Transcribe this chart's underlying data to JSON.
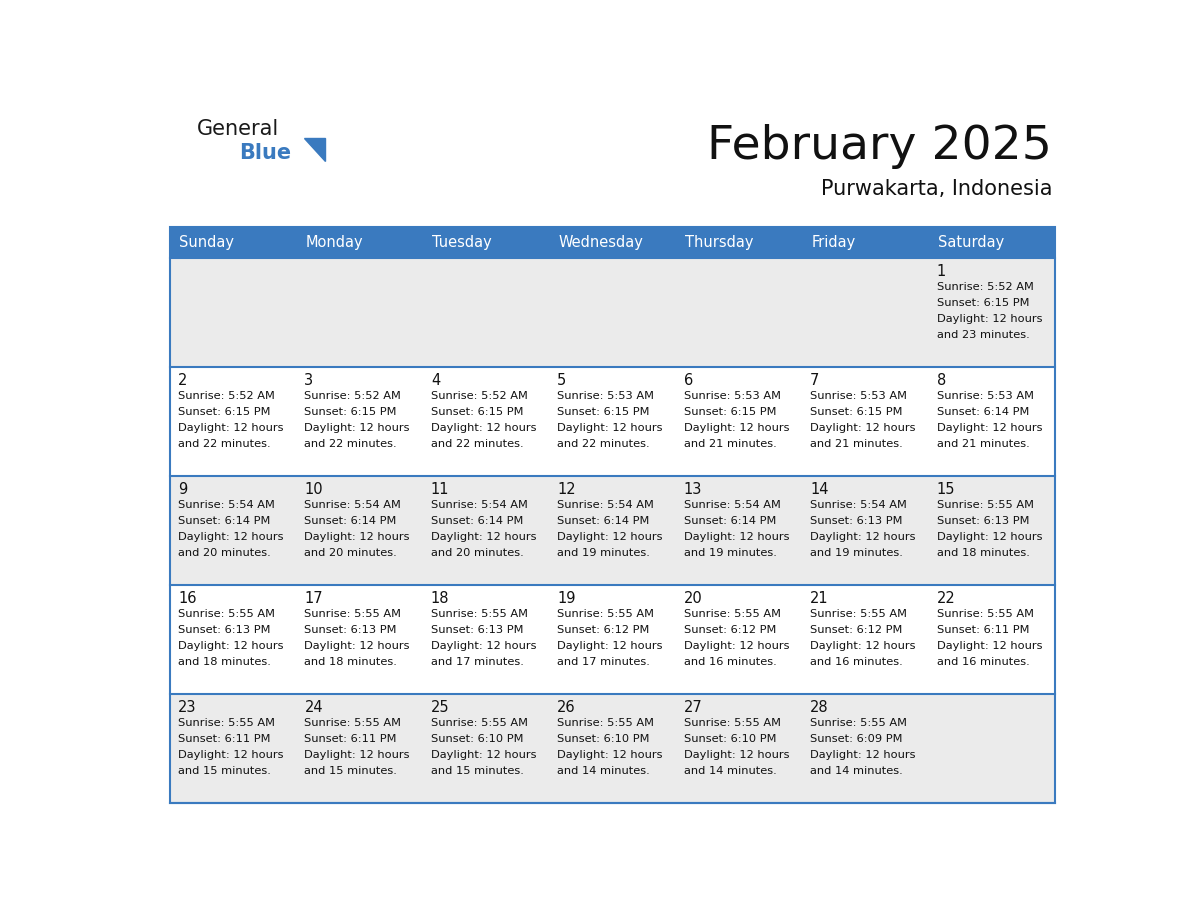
{
  "title": "February 2025",
  "subtitle": "Purwakarta, Indonesia",
  "header_color": "#3a7abf",
  "header_text_color": "#ffffff",
  "day_names": [
    "Sunday",
    "Monday",
    "Tuesday",
    "Wednesday",
    "Thursday",
    "Friday",
    "Saturday"
  ],
  "background_color": "#ffffff",
  "row_bg_colors": [
    "#ebebeb",
    "#ffffff",
    "#ebebeb",
    "#ffffff",
    "#ebebeb"
  ],
  "separator_color": "#3a7abf",
  "logo_text_color": "#1a1a1a",
  "logo_blue_color": "#3a7abf",
  "title_color": "#111111",
  "subtitle_color": "#111111",
  "text_color": "#111111",
  "days": [
    {
      "day": 1,
      "col": 6,
      "row": 0,
      "sunrise": "5:52 AM",
      "sunset": "6:15 PM",
      "daylight": "12 hours and 23 minutes."
    },
    {
      "day": 2,
      "col": 0,
      "row": 1,
      "sunrise": "5:52 AM",
      "sunset": "6:15 PM",
      "daylight": "12 hours and 22 minutes."
    },
    {
      "day": 3,
      "col": 1,
      "row": 1,
      "sunrise": "5:52 AM",
      "sunset": "6:15 PM",
      "daylight": "12 hours and 22 minutes."
    },
    {
      "day": 4,
      "col": 2,
      "row": 1,
      "sunrise": "5:52 AM",
      "sunset": "6:15 PM",
      "daylight": "12 hours and 22 minutes."
    },
    {
      "day": 5,
      "col": 3,
      "row": 1,
      "sunrise": "5:53 AM",
      "sunset": "6:15 PM",
      "daylight": "12 hours and 22 minutes."
    },
    {
      "day": 6,
      "col": 4,
      "row": 1,
      "sunrise": "5:53 AM",
      "sunset": "6:15 PM",
      "daylight": "12 hours and 21 minutes."
    },
    {
      "day": 7,
      "col": 5,
      "row": 1,
      "sunrise": "5:53 AM",
      "sunset": "6:15 PM",
      "daylight": "12 hours and 21 minutes."
    },
    {
      "day": 8,
      "col": 6,
      "row": 1,
      "sunrise": "5:53 AM",
      "sunset": "6:14 PM",
      "daylight": "12 hours and 21 minutes."
    },
    {
      "day": 9,
      "col": 0,
      "row": 2,
      "sunrise": "5:54 AM",
      "sunset": "6:14 PM",
      "daylight": "12 hours and 20 minutes."
    },
    {
      "day": 10,
      "col": 1,
      "row": 2,
      "sunrise": "5:54 AM",
      "sunset": "6:14 PM",
      "daylight": "12 hours and 20 minutes."
    },
    {
      "day": 11,
      "col": 2,
      "row": 2,
      "sunrise": "5:54 AM",
      "sunset": "6:14 PM",
      "daylight": "12 hours and 20 minutes."
    },
    {
      "day": 12,
      "col": 3,
      "row": 2,
      "sunrise": "5:54 AM",
      "sunset": "6:14 PM",
      "daylight": "12 hours and 19 minutes."
    },
    {
      "day": 13,
      "col": 4,
      "row": 2,
      "sunrise": "5:54 AM",
      "sunset": "6:14 PM",
      "daylight": "12 hours and 19 minutes."
    },
    {
      "day": 14,
      "col": 5,
      "row": 2,
      "sunrise": "5:54 AM",
      "sunset": "6:13 PM",
      "daylight": "12 hours and 19 minutes."
    },
    {
      "day": 15,
      "col": 6,
      "row": 2,
      "sunrise": "5:55 AM",
      "sunset": "6:13 PM",
      "daylight": "12 hours and 18 minutes."
    },
    {
      "day": 16,
      "col": 0,
      "row": 3,
      "sunrise": "5:55 AM",
      "sunset": "6:13 PM",
      "daylight": "12 hours and 18 minutes."
    },
    {
      "day": 17,
      "col": 1,
      "row": 3,
      "sunrise": "5:55 AM",
      "sunset": "6:13 PM",
      "daylight": "12 hours and 18 minutes."
    },
    {
      "day": 18,
      "col": 2,
      "row": 3,
      "sunrise": "5:55 AM",
      "sunset": "6:13 PM",
      "daylight": "12 hours and 17 minutes."
    },
    {
      "day": 19,
      "col": 3,
      "row": 3,
      "sunrise": "5:55 AM",
      "sunset": "6:12 PM",
      "daylight": "12 hours and 17 minutes."
    },
    {
      "day": 20,
      "col": 4,
      "row": 3,
      "sunrise": "5:55 AM",
      "sunset": "6:12 PM",
      "daylight": "12 hours and 16 minutes."
    },
    {
      "day": 21,
      "col": 5,
      "row": 3,
      "sunrise": "5:55 AM",
      "sunset": "6:12 PM",
      "daylight": "12 hours and 16 minutes."
    },
    {
      "day": 22,
      "col": 6,
      "row": 3,
      "sunrise": "5:55 AM",
      "sunset": "6:11 PM",
      "daylight": "12 hours and 16 minutes."
    },
    {
      "day": 23,
      "col": 0,
      "row": 4,
      "sunrise": "5:55 AM",
      "sunset": "6:11 PM",
      "daylight": "12 hours and 15 minutes."
    },
    {
      "day": 24,
      "col": 1,
      "row": 4,
      "sunrise": "5:55 AM",
      "sunset": "6:11 PM",
      "daylight": "12 hours and 15 minutes."
    },
    {
      "day": 25,
      "col": 2,
      "row": 4,
      "sunrise": "5:55 AM",
      "sunset": "6:10 PM",
      "daylight": "12 hours and 15 minutes."
    },
    {
      "day": 26,
      "col": 3,
      "row": 4,
      "sunrise": "5:55 AM",
      "sunset": "6:10 PM",
      "daylight": "12 hours and 14 minutes."
    },
    {
      "day": 27,
      "col": 4,
      "row": 4,
      "sunrise": "5:55 AM",
      "sunset": "6:10 PM",
      "daylight": "12 hours and 14 minutes."
    },
    {
      "day": 28,
      "col": 5,
      "row": 4,
      "sunrise": "5:55 AM",
      "sunset": "6:09 PM",
      "daylight": "12 hours and 14 minutes."
    }
  ],
  "num_rows": 5,
  "num_cols": 7
}
